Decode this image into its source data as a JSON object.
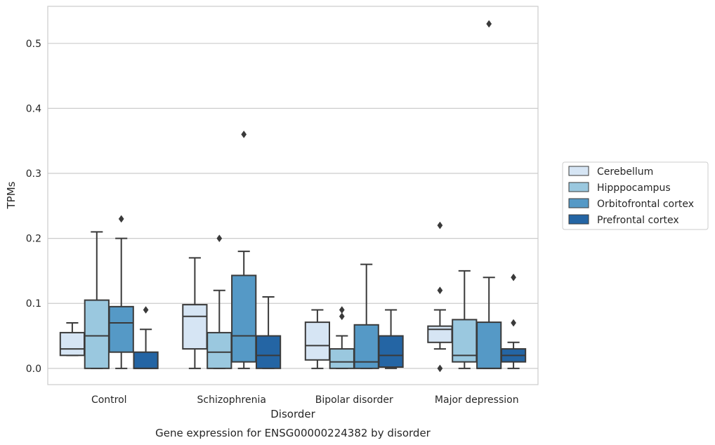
{
  "chart_data": {
    "type": "box",
    "title": "",
    "caption": "Gene expression for ENSG00000224382 by disorder",
    "xlabel": "Disorder",
    "ylabel": "TPMs",
    "ylim": [
      -0.025,
      0.557
    ],
    "yticks": [
      0.0,
      0.1,
      0.2,
      0.3,
      0.4,
      0.5
    ],
    "ytick_labels": [
      "0.0",
      "0.1",
      "0.2",
      "0.3",
      "0.4",
      "0.5"
    ],
    "grid": "horizontal",
    "legend_position": "right",
    "categories": [
      "Control",
      "Schizophrenia",
      "Bipolar disorder",
      "Major depression"
    ],
    "series": [
      {
        "name": "Cerebellum",
        "color": "#d6e5f4",
        "boxes": [
          {
            "q1": 0.02,
            "median": 0.03,
            "q3": 0.055,
            "whisker_low": 0.02,
            "whisker_high": 0.07,
            "outliers": []
          },
          {
            "q1": 0.03,
            "median": 0.08,
            "q3": 0.098,
            "whisker_low": 0.0,
            "whisker_high": 0.17,
            "outliers": []
          },
          {
            "q1": 0.013,
            "median": 0.035,
            "q3": 0.071,
            "whisker_low": 0.0,
            "whisker_high": 0.09,
            "outliers": []
          },
          {
            "q1": 0.04,
            "median": 0.06,
            "q3": 0.065,
            "whisker_low": 0.03,
            "whisker_high": 0.09,
            "outliers": [
              0.22,
              0.12,
              0.0
            ]
          }
        ]
      },
      {
        "name": "Hipppocampus",
        "color": "#9ac8df",
        "boxes": [
          {
            "q1": 0.0,
            "median": 0.05,
            "q3": 0.105,
            "whisker_low": 0.0,
            "whisker_high": 0.21,
            "outliers": []
          },
          {
            "q1": 0.0,
            "median": 0.025,
            "q3": 0.055,
            "whisker_low": 0.0,
            "whisker_high": 0.12,
            "outliers": [
              0.2
            ]
          },
          {
            "q1": 0.0,
            "median": 0.01,
            "q3": 0.03,
            "whisker_low": 0.0,
            "whisker_high": 0.05,
            "outliers": [
              0.09,
              0.08
            ]
          },
          {
            "q1": 0.01,
            "median": 0.02,
            "q3": 0.075,
            "whisker_low": 0.0,
            "whisker_high": 0.15,
            "outliers": []
          }
        ]
      },
      {
        "name": "Orbitofrontal cortex",
        "color": "#5599c6",
        "boxes": [
          {
            "q1": 0.025,
            "median": 0.07,
            "q3": 0.095,
            "whisker_low": 0.0,
            "whisker_high": 0.2,
            "outliers": [
              0.23
            ]
          },
          {
            "q1": 0.01,
            "median": 0.05,
            "q3": 0.143,
            "whisker_low": 0.0,
            "whisker_high": 0.18,
            "outliers": [
              0.36
            ]
          },
          {
            "q1": 0.0,
            "median": 0.01,
            "q3": 0.067,
            "whisker_low": 0.0,
            "whisker_high": 0.16,
            "outliers": []
          },
          {
            "q1": 0.0,
            "median": 0.0,
            "q3": 0.071,
            "whisker_low": 0.0,
            "whisker_high": 0.14,
            "outliers": [
              0.53
            ]
          }
        ]
      },
      {
        "name": "Prefrontal cortex",
        "color": "#2465a4",
        "boxes": [
          {
            "q1": 0.0,
            "median": 0.0,
            "q3": 0.025,
            "whisker_low": 0.0,
            "whisker_high": 0.06,
            "outliers": [
              0.09
            ]
          },
          {
            "q1": 0.0,
            "median": 0.02,
            "q3": 0.05,
            "whisker_low": 0.0,
            "whisker_high": 0.11,
            "outliers": []
          },
          {
            "q1": 0.002,
            "median": 0.02,
            "q3": 0.05,
            "whisker_low": 0.0,
            "whisker_high": 0.09,
            "outliers": []
          },
          {
            "q1": 0.01,
            "median": 0.02,
            "q3": 0.03,
            "whisker_low": 0.0,
            "whisker_high": 0.04,
            "outliers": [
              0.14,
              0.07
            ]
          }
        ]
      }
    ]
  }
}
